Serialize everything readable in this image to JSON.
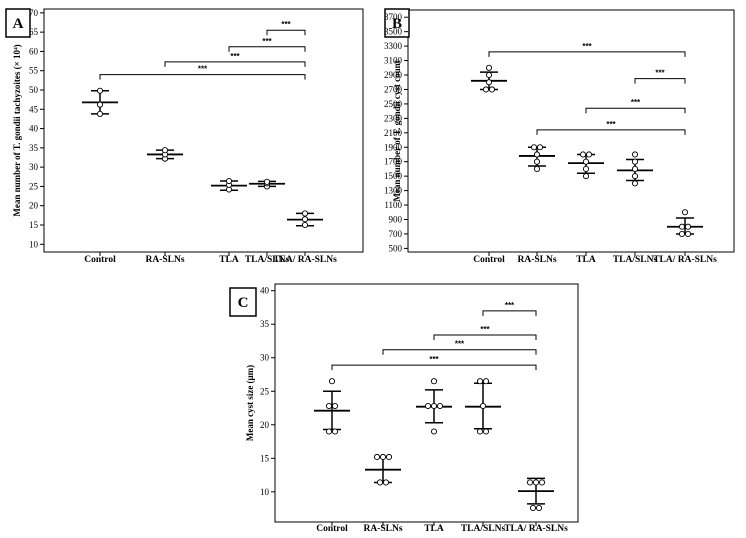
{
  "chart_data": [
    {
      "type": "scatter",
      "panel": "A",
      "ylabel": "Mean number of T. gondii tachyzoites (× 10⁴)",
      "ylim": [
        8,
        71
      ],
      "yticks": [
        "10",
        "15",
        "20",
        "25",
        "30",
        "35",
        "40",
        "45",
        "50",
        "55",
        "60",
        "65",
        "70"
      ],
      "categories": [
        "Control",
        "RA-SLNs",
        "TLA",
        "TLA/SLNs",
        "TLA/ RA-SLNs"
      ],
      "groups": [
        {
          "mean": 46.8,
          "sd_low": 43.8,
          "sd_high": 49.8,
          "points": [
            43.8,
            46.2,
            49.8
          ]
        },
        {
          "mean": 33.3,
          "sd_low": 32.2,
          "sd_high": 34.4,
          "points": [
            32.2,
            33.3,
            34.4
          ]
        },
        {
          "mean": 25.2,
          "sd_low": 24.0,
          "sd_high": 26.4,
          "points": [
            24.2,
            25.4,
            26.4
          ]
        },
        {
          "mean": 25.7,
          "sd_low": 25.0,
          "sd_high": 26.3,
          "points": [
            25.0,
            25.8,
            26.2
          ]
        },
        {
          "mean": 16.4,
          "sd_low": 14.8,
          "sd_high": 18.0,
          "points": [
            15.0,
            16.5,
            18.0
          ]
        }
      ],
      "significance": [
        {
          "label": "***",
          "from": "TLA/SLNs",
          "to": "TLA/ RA-SLNs",
          "y": 65.5
        },
        {
          "label": "***",
          "from": "TLA",
          "to": "TLA/ RA-SLNs",
          "y": 61.2
        },
        {
          "label": "***",
          "from": "RA-SLNs",
          "to": "TLA/ RA-SLNs",
          "y": 57.3
        },
        {
          "label": "***",
          "from": "Control",
          "to": "TLA/ RA-SLNs",
          "y": 54.0
        }
      ]
    },
    {
      "type": "scatter",
      "panel": "B",
      "ylabel": "Mean number of T. gondii cyst count",
      "ylim": [
        450,
        3800
      ],
      "yticks": [
        "500",
        "700",
        "900",
        "1100",
        "1300",
        "1500",
        "1700",
        "1900",
        "2100",
        "2300",
        "2500",
        "2700",
        "2900",
        "3100",
        "3300",
        "3500",
        "3700"
      ],
      "categories": [
        "Control",
        "RA-SLNs",
        "TLA",
        "TLA/SLNs",
        "TLA/ RA-SLNs"
      ],
      "groups": [
        {
          "mean": 2820,
          "sd_low": 2700,
          "sd_high": 2940,
          "points": [
            2700,
            2700,
            2800,
            2900,
            3000
          ]
        },
        {
          "mean": 1780,
          "sd_low": 1640,
          "sd_high": 1900,
          "points": [
            1600,
            1700,
            1800,
            1900,
            1900
          ]
        },
        {
          "mean": 1680,
          "sd_low": 1540,
          "sd_high": 1800,
          "points": [
            1500,
            1600,
            1700,
            1800,
            1800
          ]
        },
        {
          "mean": 1580,
          "sd_low": 1440,
          "sd_high": 1730,
          "points": [
            1400,
            1500,
            1600,
            1700,
            1800
          ]
        },
        {
          "mean": 800,
          "sd_low": 700,
          "sd_high": 920,
          "points": [
            700,
            700,
            800,
            800,
            1000
          ]
        }
      ],
      "significance": [
        {
          "label": "***",
          "from": "Control",
          "to": "TLA/ RA-SLNs",
          "y": 3220
        },
        {
          "label": "***",
          "from": "TLA/SLNs",
          "to": "TLA/ RA-SLNs",
          "y": 2850
        },
        {
          "label": "***",
          "from": "TLA",
          "to": "TLA/ RA-SLNs",
          "y": 2440
        },
        {
          "label": "***",
          "from": "RA-SLNs",
          "to": "TLA/ RA-SLNs",
          "y": 2140
        }
      ]
    },
    {
      "type": "scatter",
      "panel": "C",
      "ylabel": "Mean cyst size (μm)",
      "ylim": [
        5.5,
        41
      ],
      "yticks": [
        "10",
        "15",
        "20",
        "25",
        "30",
        "35",
        "40"
      ],
      "categories": [
        "Control",
        "RA-SLNs",
        "TLA",
        "TLA/SLNs",
        "TLA/ RA-SLNs"
      ],
      "groups": [
        {
          "mean": 22.1,
          "sd_low": 19.3,
          "sd_high": 25.0,
          "points": [
            19.0,
            19.0,
            22.8,
            22.8,
            26.5
          ]
        },
        {
          "mean": 13.3,
          "sd_low": 11.4,
          "sd_high": 15.2,
          "points": [
            11.4,
            11.4,
            15.2,
            15.2,
            15.2
          ]
        },
        {
          "mean": 22.7,
          "sd_low": 20.3,
          "sd_high": 25.2,
          "points": [
            19.0,
            22.8,
            22.8,
            22.8,
            26.5
          ]
        },
        {
          "mean": 22.7,
          "sd_low": 19.4,
          "sd_high": 26.2,
          "points": [
            19.0,
            19.0,
            22.8,
            26.5,
            26.5
          ]
        },
        {
          "mean": 10.1,
          "sd_low": 8.2,
          "sd_high": 12.0,
          "points": [
            7.6,
            7.6,
            11.4,
            11.4,
            11.4
          ]
        }
      ],
      "significance": [
        {
          "label": "***",
          "from": "TLA/SLNs",
          "to": "TLA/ RA-SLNs",
          "y": 37.0
        },
        {
          "label": "***",
          "from": "TLA",
          "to": "TLA/ RA-SLNs",
          "y": 33.4
        },
        {
          "label": "***",
          "from": "RA-SLNs",
          "to": "TLA/ RA-SLNs",
          "y": 31.2
        },
        {
          "label": "***",
          "from": "Control",
          "to": "TLA/ RA-SLNs",
          "y": 28.9
        }
      ]
    }
  ]
}
